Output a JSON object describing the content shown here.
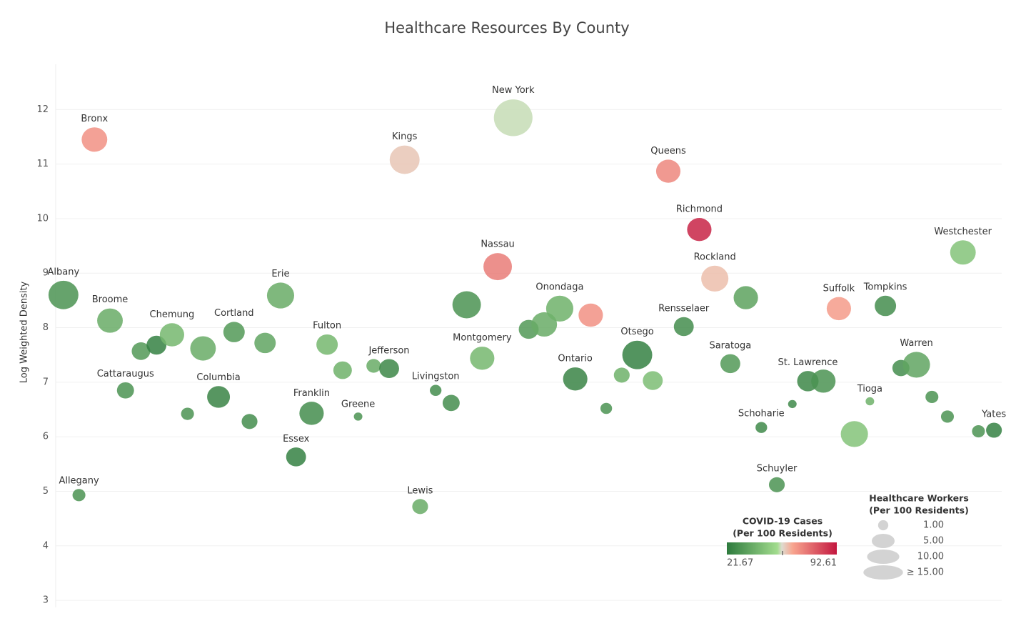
{
  "chart_data": {
    "type": "bubble",
    "title": "Healthcare Resources By County",
    "y_label": "Log Weighted Density",
    "ylim": [
      2.87,
      12.83
    ],
    "yticks": [
      3,
      4,
      5,
      6,
      7,
      8,
      9,
      10,
      11,
      12
    ],
    "grid": true,
    "categories": [
      "Albany",
      "Allegany",
      "Bronx",
      "Broome",
      "Cattaraugus",
      null,
      null,
      "Chemung",
      null,
      null,
      "Columbia",
      "Cortland",
      null,
      null,
      "Erie",
      "Essex",
      "Franklin",
      "Fulton",
      null,
      "Greene",
      null,
      "Jefferson",
      "Kings",
      "Lewis",
      "Livingston",
      null,
      null,
      "Montgomery",
      "Nassau",
      "New York",
      null,
      null,
      "Onondaga",
      "Ontario",
      null,
      null,
      null,
      "Otsego",
      null,
      "Queens",
      "Rensselaer",
      "Richmond",
      "Rockland",
      "Saratoga",
      null,
      "Schoharie",
      "Schuyler",
      null,
      "St. Lawrence",
      null,
      "Suffolk",
      null,
      "Tioga",
      "Tompkins",
      null,
      "Warren",
      null,
      null,
      "Westchester",
      null,
      "Yates"
    ],
    "values": [
      8.6,
      4.93,
      11.45,
      8.13,
      6.85,
      7.57,
      7.68,
      7.87,
      6.42,
      7.62,
      6.73,
      7.92,
      6.28,
      7.72,
      8.59,
      5.63,
      6.43,
      7.69,
      7.22,
      6.37,
      7.3,
      7.25,
      11.08,
      4.72,
      6.85,
      6.62,
      8.42,
      7.44,
      9.12,
      11.85,
      7.97,
      8.06,
      8.35,
      7.06,
      8.23,
      6.52,
      7.13,
      7.5,
      7.03,
      10.87,
      8.02,
      9.8,
      8.9,
      7.34,
      8.55,
      6.17,
      5.12,
      6.6,
      7.02,
      7.02,
      8.35,
      6.05,
      6.65,
      8.4,
      7.26,
      7.32,
      6.73,
      6.37,
      9.38,
      6.1,
      6.12
    ],
    "sizes": [
      8.6,
      1.6,
      6.3,
      6.3,
      2.8,
      3.3,
      3.8,
      5.7,
      1.6,
      6.3,
      5,
      4.4,
      2.4,
      4.4,
      7.1,
      3.8,
      5.7,
      4.4,
      3.3,
      0.7,
      2,
      3.8,
      8.6,
      2.4,
      1.3,
      2.8,
      7.8,
      5.7,
      7.8,
      14.3,
      3.8,
      6.3,
      7.1,
      5.7,
      5.7,
      1.3,
      2.4,
      8.6,
      3.8,
      5.7,
      3.8,
      5.7,
      7.1,
      3.8,
      5.7,
      1.3,
      2.4,
      0.7,
      4.4,
      5.7,
      5.7,
      7.1,
      0.7,
      4.4,
      2.8,
      7.1,
      1.6,
      1.6,
      6.3,
      1.6,
      2.4
    ],
    "color_values": [
      30,
      30,
      68,
      38,
      30,
      32,
      24,
      42,
      30,
      38,
      25,
      32,
      28,
      36,
      38,
      24,
      28,
      42,
      40,
      30,
      38,
      26,
      60,
      38,
      28,
      28,
      30,
      42,
      72,
      56,
      32,
      38,
      40,
      25,
      68,
      30,
      40,
      24,
      44,
      70,
      28,
      90,
      61,
      32,
      35,
      27,
      30,
      27,
      26,
      30,
      66,
      46,
      40,
      28,
      28,
      36,
      30,
      30,
      46,
      30,
      24
    ],
    "color_stops": [
      [
        0,
        "#2d7a3d"
      ],
      [
        0.46,
        "#a2dc8e"
      ],
      [
        0.5,
        "#dedcd0"
      ],
      [
        0.6,
        "#f8a48e"
      ],
      [
        1,
        "#c3173f"
      ]
    ],
    "color_legend": {
      "title": [
        "COVID-19 Cases",
        "(Per 100 Residents)"
      ],
      "min": 21.67,
      "max": 92.61
    },
    "size_legend": {
      "title": [
        "Healthcare Workers",
        "(Per 100 Residents)"
      ],
      "items": [
        {
          "value": 1,
          "label": "1.00"
        },
        {
          "value": 5,
          "label": "5.00"
        },
        {
          "value": 10,
          "label": "10.00"
        },
        {
          "value": 15,
          "label": "≥ 15.00"
        }
      ]
    }
  }
}
